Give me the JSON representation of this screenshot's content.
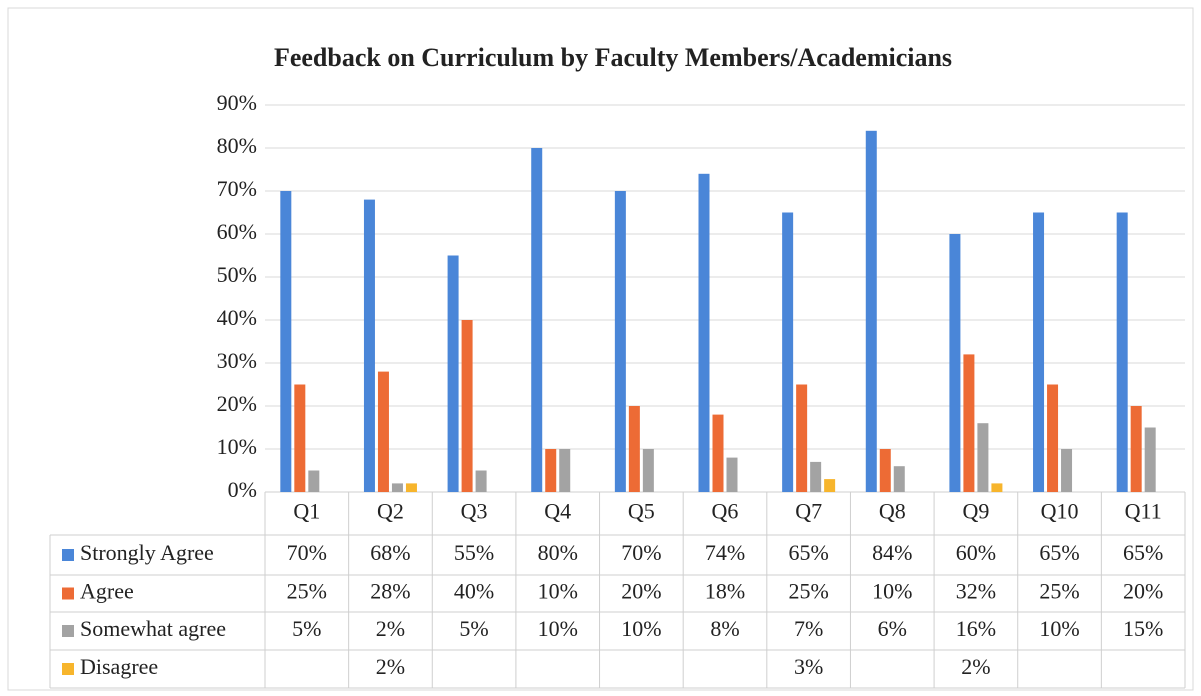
{
  "chart_data": {
    "type": "bar",
    "title": "Feedback on Curriculum by Faculty Members/Academicians",
    "categories": [
      "Q1",
      "Q2",
      "Q3",
      "Q4",
      "Q5",
      "Q6",
      "Q7",
      "Q8",
      "Q9",
      "Q10",
      "Q11"
    ],
    "series": [
      {
        "name": "Strongly Agree",
        "color": "#4a86d8",
        "values": [
          70,
          68,
          55,
          80,
          70,
          74,
          65,
          84,
          60,
          65,
          65
        ],
        "value_labels": [
          "70%",
          "68%",
          "55%",
          "80%",
          "70%",
          "74%",
          "65%",
          "84%",
          "60%",
          "65%",
          "65%"
        ]
      },
      {
        "name": "Agree",
        "color": "#ed6b35",
        "values": [
          25,
          28,
          40,
          10,
          20,
          18,
          25,
          10,
          32,
          25,
          20
        ],
        "value_labels": [
          "25%",
          "28%",
          "40%",
          "10%",
          "20%",
          "18%",
          "25%",
          "10%",
          "32%",
          "25%",
          "20%"
        ]
      },
      {
        "name": "Somewhat agree",
        "color": "#a3a3a3",
        "values": [
          5,
          2,
          5,
          10,
          10,
          8,
          7,
          6,
          16,
          10,
          15
        ],
        "value_labels": [
          "5%",
          "2%",
          "5%",
          "10%",
          "10%",
          "8%",
          "7%",
          "6%",
          "16%",
          "10%",
          "15%"
        ]
      },
      {
        "name": "Disagree",
        "color": "#f7b52c",
        "values": [
          null,
          2,
          null,
          null,
          null,
          null,
          3,
          null,
          2,
          null,
          null
        ],
        "value_labels": [
          null,
          "2%",
          null,
          null,
          null,
          null,
          "3%",
          null,
          "2%",
          null,
          null
        ]
      }
    ],
    "ylim": [
      0,
      90
    ],
    "yticks": [
      {
        "value": 0,
        "label": "0%"
      },
      {
        "value": 10,
        "label": "10%"
      },
      {
        "value": 20,
        "label": "20%"
      },
      {
        "value": 30,
        "label": "30%"
      },
      {
        "value": 40,
        "label": "40%"
      },
      {
        "value": 50,
        "label": "50%"
      },
      {
        "value": 60,
        "label": "60%"
      },
      {
        "value": 70,
        "label": "70%"
      },
      {
        "value": 80,
        "label": "80%"
      },
      {
        "value": 90,
        "label": "90%"
      }
    ],
    "grid": true
  }
}
